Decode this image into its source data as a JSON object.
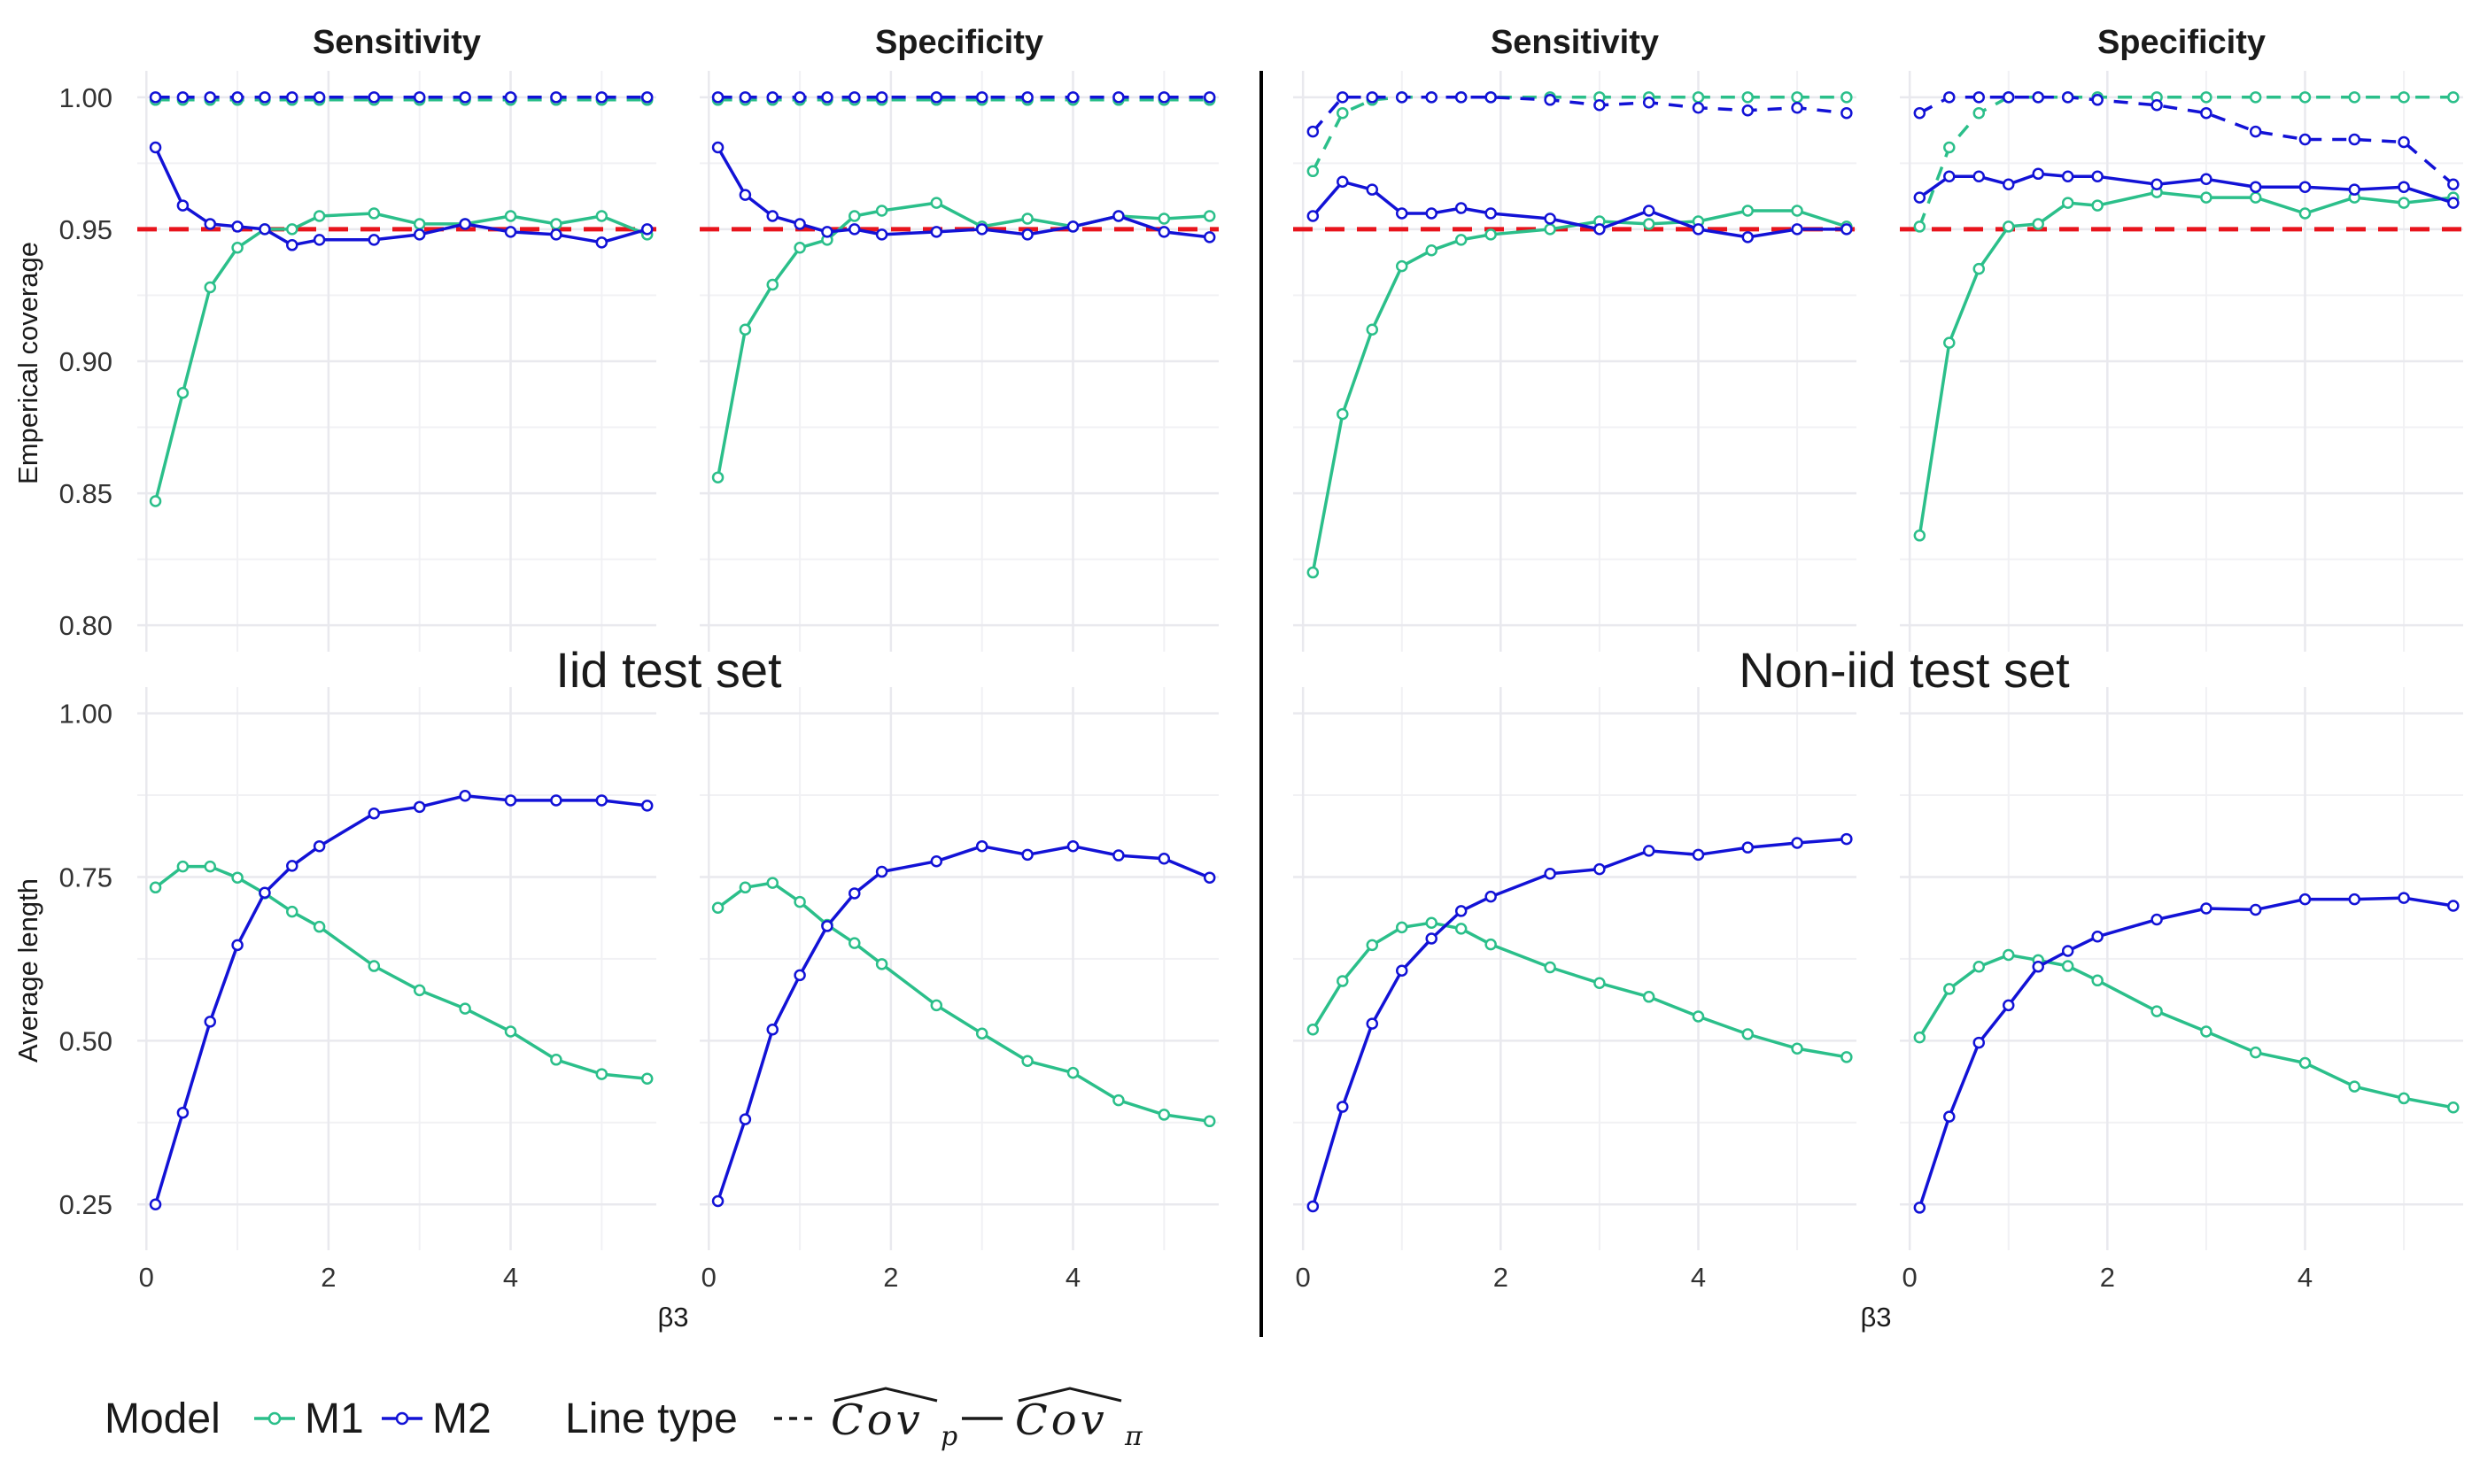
{
  "colors": {
    "M1": "#2bbf8a",
    "M2": "#1212d6",
    "reference": "#e8141c",
    "grid": "#e9e9ee",
    "divider": "#000000"
  },
  "sections": [
    {
      "label": "Iid test set",
      "x_axis_label": "β3"
    },
    {
      "label": "Non-iid test set",
      "x_axis_label": "β3"
    }
  ],
  "row_axis_labels": [
    "Emperical coverage",
    "Average length"
  ],
  "legend": {
    "model_title": "Model",
    "models": [
      "M1",
      "M2"
    ],
    "linetype_title": "Line type",
    "linetypes": [
      {
        "style": "dashed",
        "symbol": "Cov",
        "subscript": "p"
      },
      {
        "style": "solid",
        "symbol": "Cov",
        "subscript": "π"
      }
    ]
  },
  "chart_data": [
    {
      "type": "line",
      "section": "Iid test set",
      "metric": "Emperical coverage",
      "title": "Sensitivity",
      "xlabel": "",
      "ylabel": "Emperical coverage",
      "xlim": [
        -0.1,
        5.6
      ],
      "ylim": [
        0.79,
        1.01
      ],
      "xticks": [
        0,
        2,
        4
      ],
      "yticks": [
        0.8,
        0.85,
        0.9,
        0.95,
        1.0
      ],
      "reference_line": 0.95,
      "x": [
        0.1,
        0.4,
        0.7,
        1.0,
        1.3,
        1.6,
        1.9,
        2.5,
        3.0,
        3.5,
        4.0,
        4.5,
        5.0,
        5.5
      ],
      "series": [
        {
          "name": "M1",
          "linetype": "solid",
          "values": [
            0.847,
            0.888,
            0.928,
            0.943,
            0.95,
            0.95,
            0.955,
            0.956,
            0.952,
            0.952,
            0.955,
            0.952,
            0.955,
            0.948
          ]
        },
        {
          "name": "M2",
          "linetype": "solid",
          "values": [
            0.981,
            0.959,
            0.952,
            0.951,
            0.95,
            0.944,
            0.946,
            0.946,
            0.948,
            0.952,
            0.949,
            0.948,
            0.945,
            0.95
          ]
        },
        {
          "name": "M1",
          "linetype": "dashed",
          "values": [
            0.999,
            0.999,
            0.999,
            0.999,
            0.999,
            0.999,
            0.999,
            0.999,
            0.999,
            0.999,
            0.999,
            0.999,
            0.999,
            0.999
          ]
        },
        {
          "name": "M2",
          "linetype": "dashed",
          "values": [
            1.0,
            1.0,
            1.0,
            1.0,
            1.0,
            1.0,
            1.0,
            1.0,
            1.0,
            1.0,
            1.0,
            1.0,
            1.0,
            1.0
          ]
        }
      ]
    },
    {
      "type": "line",
      "section": "Iid test set",
      "metric": "Emperical coverage",
      "title": "Specificity",
      "xlabel": "",
      "ylabel": "",
      "xlim": [
        -0.1,
        5.6
      ],
      "ylim": [
        0.79,
        1.01
      ],
      "xticks": [
        0,
        2,
        4
      ],
      "yticks": [
        0.8,
        0.85,
        0.9,
        0.95,
        1.0
      ],
      "reference_line": 0.95,
      "x": [
        0.1,
        0.4,
        0.7,
        1.0,
        1.3,
        1.6,
        1.9,
        2.5,
        3.0,
        3.5,
        4.0,
        4.5,
        5.0,
        5.5
      ],
      "series": [
        {
          "name": "M1",
          "linetype": "solid",
          "values": [
            0.856,
            0.912,
            0.929,
            0.943,
            0.946,
            0.955,
            0.957,
            0.96,
            0.951,
            0.954,
            0.951,
            0.955,
            0.954,
            0.955
          ]
        },
        {
          "name": "M2",
          "linetype": "solid",
          "values": [
            0.981,
            0.963,
            0.955,
            0.952,
            0.949,
            0.95,
            0.948,
            0.949,
            0.95,
            0.948,
            0.951,
            0.955,
            0.949,
            0.947
          ]
        },
        {
          "name": "M1",
          "linetype": "dashed",
          "values": [
            0.999,
            0.999,
            0.999,
            0.999,
            0.999,
            0.999,
            0.999,
            0.999,
            0.999,
            0.999,
            0.999,
            0.999,
            0.999,
            0.999
          ]
        },
        {
          "name": "M2",
          "linetype": "dashed",
          "values": [
            1.0,
            1.0,
            1.0,
            1.0,
            1.0,
            1.0,
            1.0,
            1.0,
            1.0,
            1.0,
            1.0,
            1.0,
            1.0,
            1.0
          ]
        }
      ]
    },
    {
      "type": "line",
      "section": "Non-iid test set",
      "metric": "Emperical coverage",
      "title": "Sensitivity",
      "xlabel": "",
      "ylabel": "",
      "xlim": [
        -0.1,
        5.6
      ],
      "ylim": [
        0.79,
        1.01
      ],
      "xticks": [
        0,
        2,
        4
      ],
      "yticks": [
        0.8,
        0.85,
        0.9,
        0.95,
        1.0
      ],
      "reference_line": 0.95,
      "x": [
        0.1,
        0.4,
        0.7,
        1.0,
        1.3,
        1.6,
        1.9,
        2.5,
        3.0,
        3.5,
        4.0,
        4.5,
        5.0,
        5.5
      ],
      "series": [
        {
          "name": "M1",
          "linetype": "solid",
          "values": [
            0.82,
            0.88,
            0.912,
            0.936,
            0.942,
            0.946,
            0.948,
            0.95,
            0.953,
            0.952,
            0.953,
            0.957,
            0.957,
            0.951
          ]
        },
        {
          "name": "M2",
          "linetype": "solid",
          "values": [
            0.955,
            0.968,
            0.965,
            0.956,
            0.956,
            0.958,
            0.956,
            0.954,
            0.95,
            0.957,
            0.95,
            0.947,
            0.95,
            0.95
          ]
        },
        {
          "name": "M1",
          "linetype": "dashed",
          "values": [
            0.972,
            0.994,
            0.999,
            1.0,
            1.0,
            1.0,
            1.0,
            1.0,
            1.0,
            1.0,
            1.0,
            1.0,
            1.0,
            1.0
          ]
        },
        {
          "name": "M2",
          "linetype": "dashed",
          "values": [
            0.987,
            1.0,
            1.0,
            1.0,
            1.0,
            1.0,
            1.0,
            0.999,
            0.997,
            0.998,
            0.996,
            0.995,
            0.996,
            0.994
          ]
        }
      ]
    },
    {
      "type": "line",
      "section": "Non-iid test set",
      "metric": "Emperical coverage",
      "title": "Specificity",
      "xlabel": "",
      "ylabel": "",
      "xlim": [
        -0.1,
        5.6
      ],
      "ylim": [
        0.79,
        1.01
      ],
      "xticks": [
        0,
        2,
        4
      ],
      "yticks": [
        0.8,
        0.85,
        0.9,
        0.95,
        1.0
      ],
      "reference_line": 0.95,
      "x": [
        0.1,
        0.4,
        0.7,
        1.0,
        1.3,
        1.6,
        1.9,
        2.5,
        3.0,
        3.5,
        4.0,
        4.5,
        5.0,
        5.5
      ],
      "series": [
        {
          "name": "M1",
          "linetype": "solid",
          "values": [
            0.834,
            0.907,
            0.935,
            0.951,
            0.952,
            0.96,
            0.959,
            0.964,
            0.962,
            0.962,
            0.956,
            0.962,
            0.96,
            0.962
          ]
        },
        {
          "name": "M2",
          "linetype": "solid",
          "values": [
            0.962,
            0.97,
            0.97,
            0.967,
            0.971,
            0.97,
            0.97,
            0.967,
            0.969,
            0.966,
            0.966,
            0.965,
            0.966,
            0.96
          ]
        },
        {
          "name": "M1",
          "linetype": "dashed",
          "values": [
            0.951,
            0.981,
            0.994,
            1.0,
            1.0,
            1.0,
            1.0,
            1.0,
            1.0,
            1.0,
            1.0,
            1.0,
            1.0,
            1.0
          ]
        },
        {
          "name": "M2",
          "linetype": "dashed",
          "values": [
            0.994,
            1.0,
            1.0,
            1.0,
            1.0,
            1.0,
            0.999,
            0.997,
            0.994,
            0.987,
            0.984,
            0.984,
            0.983,
            0.967
          ]
        }
      ]
    },
    {
      "type": "line",
      "section": "Iid test set",
      "metric": "Average length",
      "title": "Sensitivity",
      "xlabel": "β3",
      "ylabel": "Average length",
      "xlim": [
        -0.1,
        5.6
      ],
      "ylim": [
        0.18,
        1.04
      ],
      "xticks": [
        0,
        2,
        4
      ],
      "yticks": [
        0.25,
        0.5,
        0.75,
        1.0
      ],
      "x": [
        0.1,
        0.4,
        0.7,
        1.0,
        1.3,
        1.6,
        1.9,
        2.5,
        3.0,
        3.5,
        4.0,
        4.5,
        5.0,
        5.5
      ],
      "series": [
        {
          "name": "M1",
          "linetype": "solid",
          "values": [
            0.734,
            0.766,
            0.766,
            0.749,
            0.725,
            0.697,
            0.674,
            0.614,
            0.577,
            0.549,
            0.514,
            0.471,
            0.449,
            0.442
          ]
        },
        {
          "name": "M2",
          "linetype": "solid",
          "values": [
            0.25,
            0.39,
            0.529,
            0.646,
            0.726,
            0.767,
            0.797,
            0.847,
            0.857,
            0.874,
            0.867,
            0.867,
            0.867,
            0.859
          ]
        }
      ]
    },
    {
      "type": "line",
      "section": "Iid test set",
      "metric": "Average length",
      "title": "Specificity",
      "xlabel": "β3",
      "ylabel": "",
      "xlim": [
        -0.1,
        5.6
      ],
      "ylim": [
        0.18,
        1.04
      ],
      "xticks": [
        0,
        2,
        4
      ],
      "yticks": [
        0.25,
        0.5,
        0.75,
        1.0
      ],
      "x": [
        0.1,
        0.4,
        0.7,
        1.0,
        1.3,
        1.6,
        1.9,
        2.5,
        3.0,
        3.5,
        4.0,
        4.5,
        5.0,
        5.5
      ],
      "series": [
        {
          "name": "M1",
          "linetype": "solid",
          "values": [
            0.703,
            0.734,
            0.741,
            0.712,
            0.677,
            0.649,
            0.617,
            0.554,
            0.511,
            0.469,
            0.451,
            0.409,
            0.387,
            0.377
          ]
        },
        {
          "name": "M2",
          "linetype": "solid",
          "values": [
            0.255,
            0.38,
            0.517,
            0.6,
            0.675,
            0.725,
            0.758,
            0.774,
            0.797,
            0.784,
            0.797,
            0.783,
            0.778,
            0.749
          ]
        }
      ]
    },
    {
      "type": "line",
      "section": "Non-iid test set",
      "metric": "Average length",
      "title": "Sensitivity",
      "xlabel": "β3",
      "ylabel": "",
      "xlim": [
        -0.1,
        5.6
      ],
      "ylim": [
        0.18,
        1.04
      ],
      "xticks": [
        0,
        2,
        4
      ],
      "yticks": [
        0.25,
        0.5,
        0.75,
        1.0
      ],
      "x": [
        0.1,
        0.4,
        0.7,
        1.0,
        1.3,
        1.6,
        1.9,
        2.5,
        3.0,
        3.5,
        4.0,
        4.5,
        5.0,
        5.5
      ],
      "series": [
        {
          "name": "M1",
          "linetype": "solid",
          "values": [
            0.517,
            0.591,
            0.646,
            0.673,
            0.68,
            0.671,
            0.647,
            0.612,
            0.588,
            0.567,
            0.537,
            0.51,
            0.488,
            0.475
          ]
        },
        {
          "name": "M2",
          "linetype": "solid",
          "values": [
            0.247,
            0.399,
            0.526,
            0.607,
            0.656,
            0.698,
            0.72,
            0.755,
            0.762,
            0.79,
            0.784,
            0.795,
            0.802,
            0.808
          ]
        }
      ]
    },
    {
      "type": "line",
      "section": "Non-iid test set",
      "metric": "Average length",
      "title": "Specificity",
      "xlabel": "β3",
      "ylabel": "",
      "xlim": [
        -0.1,
        5.6
      ],
      "ylim": [
        0.18,
        1.04
      ],
      "xticks": [
        0,
        2,
        4
      ],
      "yticks": [
        0.25,
        0.5,
        0.75,
        1.0
      ],
      "x": [
        0.1,
        0.4,
        0.7,
        1.0,
        1.3,
        1.6,
        1.9,
        2.5,
        3.0,
        3.5,
        4.0,
        4.5,
        5.0,
        5.5
      ],
      "series": [
        {
          "name": "M1",
          "linetype": "solid",
          "values": [
            0.505,
            0.579,
            0.613,
            0.631,
            0.623,
            0.614,
            0.592,
            0.545,
            0.514,
            0.482,
            0.466,
            0.43,
            0.412,
            0.398
          ]
        },
        {
          "name": "M2",
          "linetype": "solid",
          "values": [
            0.245,
            0.384,
            0.497,
            0.554,
            0.613,
            0.637,
            0.659,
            0.685,
            0.702,
            0.7,
            0.716,
            0.716,
            0.718,
            0.706
          ]
        }
      ]
    }
  ]
}
